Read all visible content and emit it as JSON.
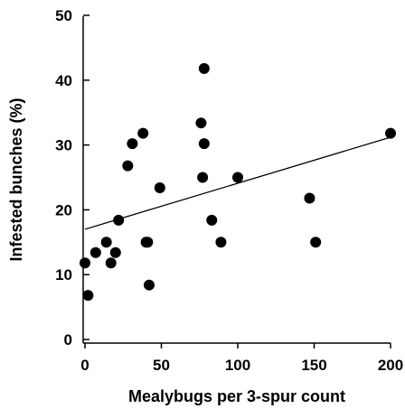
{
  "chart_data": {
    "type": "scatter",
    "title": "",
    "xlabel": "Mealybugs per 3-spur count",
    "ylabel": "Infested bunches (%)",
    "xlim": [
      0,
      200
    ],
    "ylim": [
      0,
      50
    ],
    "xticks": [
      0,
      50,
      100,
      150,
      200
    ],
    "yticks": [
      0,
      10,
      20,
      30,
      40,
      50
    ],
    "grid": false,
    "legend": "none",
    "marker_color": "#000000",
    "series": [
      {
        "points": [
          {
            "x": 0,
            "y": 11.8
          },
          {
            "x": 2,
            "y": 6.8
          },
          {
            "x": 7,
            "y": 13.4
          },
          {
            "x": 14,
            "y": 15
          },
          {
            "x": 17,
            "y": 11.8
          },
          {
            "x": 20,
            "y": 13.4
          },
          {
            "x": 22,
            "y": 18.4
          },
          {
            "x": 28,
            "y": 26.8
          },
          {
            "x": 31,
            "y": 30.2
          },
          {
            "x": 38,
            "y": 31.8
          },
          {
            "x": 40,
            "y": 15
          },
          {
            "x": 41,
            "y": 15
          },
          {
            "x": 42,
            "y": 8.4
          },
          {
            "x": 49,
            "y": 23.4
          },
          {
            "x": 76,
            "y": 33.4
          },
          {
            "x": 77,
            "y": 25
          },
          {
            "x": 78,
            "y": 41.8
          },
          {
            "x": 78,
            "y": 30.2
          },
          {
            "x": 83,
            "y": 18.4
          },
          {
            "x": 89,
            "y": 15
          },
          {
            "x": 100,
            "y": 25
          },
          {
            "x": 147,
            "y": 21.8
          },
          {
            "x": 151,
            "y": 15
          },
          {
            "x": 200,
            "y": 31.8
          }
        ]
      }
    ],
    "trendline": {
      "x": [
        0,
        200
      ],
      "y": [
        17,
        31.2
      ]
    }
  }
}
